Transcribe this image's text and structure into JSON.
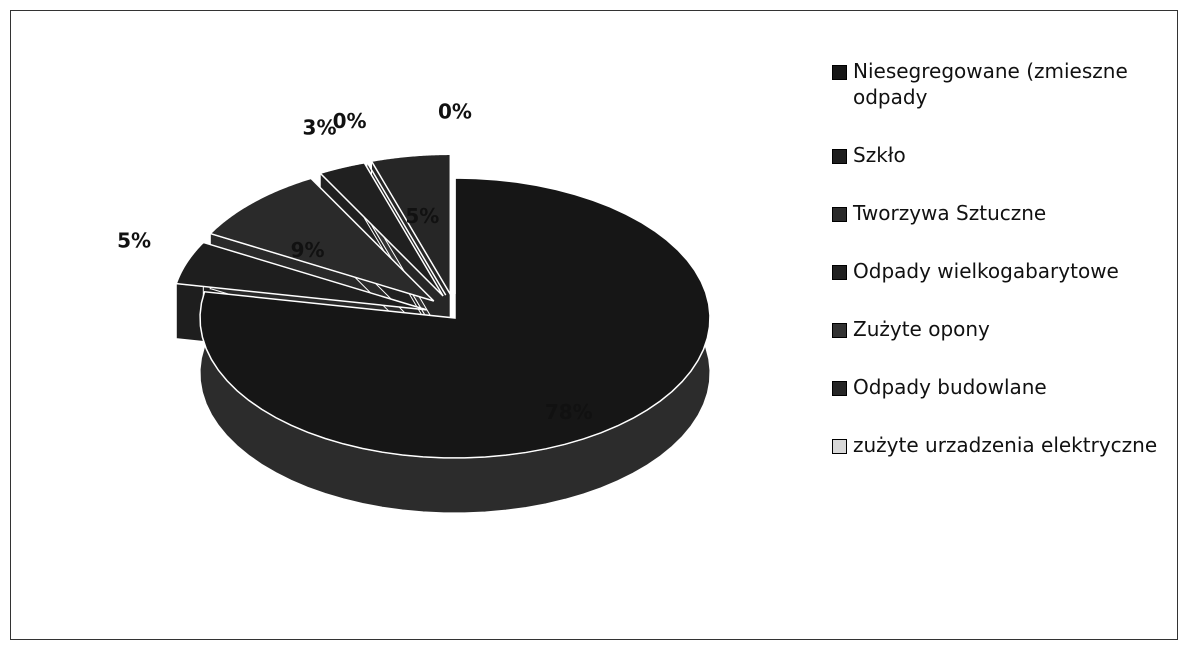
{
  "chart_data": {
    "type": "pie",
    "categories": [
      "Niesegregowane (zmieszne odpady",
      "Szkło",
      "Tworzywa Sztuczne",
      "Odpady wielkogabarytowe",
      "Zużyte opony",
      "Odpady budowlane",
      "zużyte urzadzenia elektryczne"
    ],
    "values": [
      78,
      5,
      9,
      3,
      0,
      5,
      0
    ],
    "value_labels": [
      "78%",
      "5%",
      "9%",
      "3%",
      "0%",
      "5%",
      "0%"
    ],
    "colors": [
      "#161616",
      "#1e1e1e",
      "#2a2a2a",
      "#202020",
      "#333333",
      "#262626",
      "#d8d8d8"
    ],
    "legend": "right"
  }
}
